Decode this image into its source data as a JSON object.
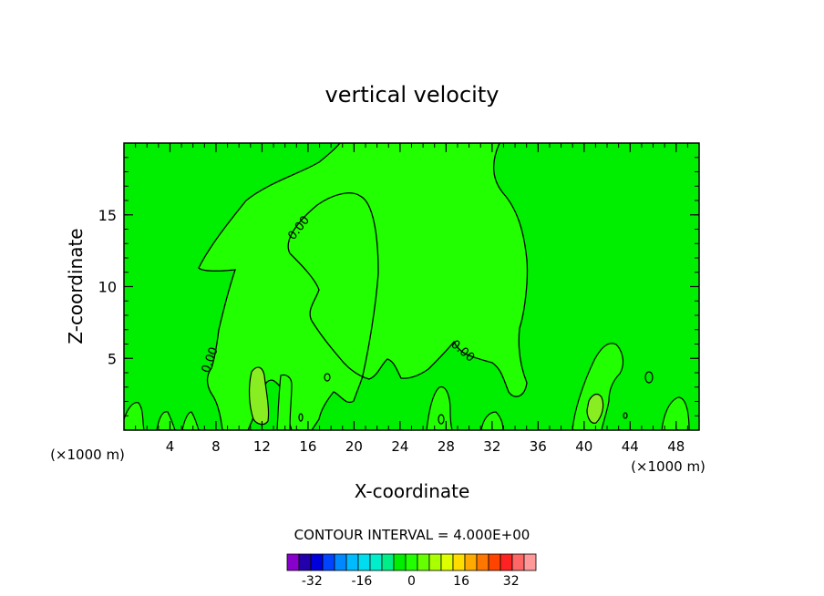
{
  "chart_data": {
    "type": "contour",
    "title": "vertical velocity",
    "xlabel": "X-coordinate",
    "ylabel": "Z-coordinate",
    "x_unit": "(×1000 m)",
    "xlim": [
      0,
      50
    ],
    "ylim": [
      0,
      20
    ],
    "x_ticks": [
      4,
      8,
      12,
      16,
      20,
      24,
      28,
      32,
      36,
      40,
      44,
      48
    ],
    "y_ticks": [
      5,
      10,
      15
    ],
    "contour_label": "0.00",
    "contour_interval_text": "CONTOUR INTERVAL = 4.000E+00",
    "background_color": "#00ee00",
    "positive_fill_color": "#22ff00",
    "strong_positive_color": "#88ee22",
    "colorbar": {
      "ticks": [
        "-32",
        "-16",
        "0",
        "16",
        "32"
      ],
      "tick_values": [
        -32,
        -16,
        0,
        16,
        32
      ],
      "min": -40,
      "max": 40,
      "colors": [
        "#8800cc",
        "#2200aa",
        "#0000dd",
        "#0044ff",
        "#0088ff",
        "#00bbff",
        "#00ddee",
        "#00eecc",
        "#00ee88",
        "#00ee00",
        "#22ff00",
        "#66ff00",
        "#aaff00",
        "#ddff00",
        "#ffdd00",
        "#ffaa00",
        "#ff7700",
        "#ff4400",
        "#ff2222",
        "#ff6666",
        "#ff9999"
      ]
    }
  }
}
